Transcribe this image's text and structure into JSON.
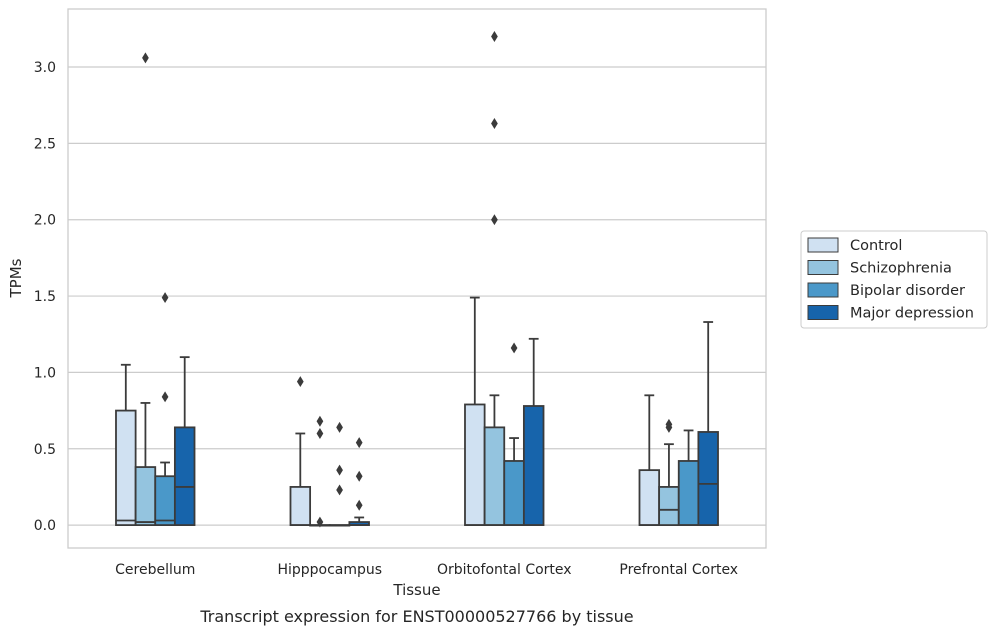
{
  "chart_data": {
    "type": "box",
    "caption": "Transcript expression for ENST00000527766 by tissue",
    "xlabel": "Tissue",
    "ylabel": "TPMs",
    "ylim": [
      -0.15,
      3.38
    ],
    "yticks": [
      0.0,
      0.5,
      1.0,
      1.5,
      2.0,
      2.5,
      3.0
    ],
    "ytick_labels": [
      "0.0",
      "0.5",
      "1.0",
      "1.5",
      "2.0",
      "2.5",
      "3.0"
    ],
    "grid": "horizontal",
    "legend_position": "right",
    "categories": [
      "Cerebellum",
      "Hipppocampus",
      "Orbitofontal Cortex",
      "Prefrontal Cortex"
    ],
    "series": [
      {
        "name": "Control",
        "color": "#d0e1f2",
        "boxes": [
          {
            "q1": 0.0,
            "median": 0.03,
            "q3": 0.75,
            "whisker_low": 0.0,
            "whisker_high": 1.05,
            "outliers": []
          },
          {
            "q1": 0.0,
            "median": 0.0,
            "q3": 0.25,
            "whisker_low": 0.0,
            "whisker_high": 0.6,
            "outliers": [
              0.94
            ]
          },
          {
            "q1": 0.0,
            "median": 0.0,
            "q3": 0.79,
            "whisker_low": 0.0,
            "whisker_high": 1.49,
            "outliers": []
          },
          {
            "q1": 0.0,
            "median": 0.0,
            "q3": 0.36,
            "whisker_low": 0.0,
            "whisker_high": 0.85,
            "outliers": []
          }
        ]
      },
      {
        "name": "Schizophrenia",
        "color": "#94c4df",
        "boxes": [
          {
            "q1": 0.0,
            "median": 0.02,
            "q3": 0.38,
            "whisker_low": 0.0,
            "whisker_high": 0.8,
            "outliers": [
              3.06
            ]
          },
          {
            "q1": 0.0,
            "median": 0.0,
            "q3": 0.0,
            "whisker_low": 0.0,
            "whisker_high": 0.0,
            "outliers": [
              0.02,
              0.6,
              0.68
            ]
          },
          {
            "q1": 0.0,
            "median": 0.0,
            "q3": 0.64,
            "whisker_low": 0.0,
            "whisker_high": 0.85,
            "outliers": [
              2.0,
              2.63,
              3.2
            ]
          },
          {
            "q1": 0.0,
            "median": 0.1,
            "q3": 0.25,
            "whisker_low": 0.0,
            "whisker_high": 0.53,
            "outliers": [
              0.64,
              0.66
            ]
          }
        ]
      },
      {
        "name": "Bipolar disorder",
        "color": "#4a98c9",
        "boxes": [
          {
            "q1": 0.0,
            "median": 0.03,
            "q3": 0.32,
            "whisker_low": 0.0,
            "whisker_high": 0.41,
            "outliers": [
              0.84,
              1.49
            ]
          },
          {
            "q1": 0.0,
            "median": 0.0,
            "q3": 0.0,
            "whisker_low": 0.0,
            "whisker_high": 0.0,
            "outliers": [
              0.23,
              0.36,
              0.64
            ]
          },
          {
            "q1": 0.0,
            "median": 0.0,
            "q3": 0.42,
            "whisker_low": 0.0,
            "whisker_high": 0.57,
            "outliers": [
              1.16
            ]
          },
          {
            "q1": 0.0,
            "median": 0.0,
            "q3": 0.42,
            "whisker_low": 0.0,
            "whisker_high": 0.62,
            "outliers": []
          }
        ]
      },
      {
        "name": "Major depression",
        "color": "#1764ab",
        "boxes": [
          {
            "q1": 0.0,
            "median": 0.25,
            "q3": 0.64,
            "whisker_low": 0.0,
            "whisker_high": 1.1,
            "outliers": []
          },
          {
            "q1": 0.0,
            "median": 0.0,
            "q3": 0.02,
            "whisker_low": 0.0,
            "whisker_high": 0.05,
            "outliers": [
              0.13,
              0.32,
              0.54
            ]
          },
          {
            "q1": 0.0,
            "median": 0.0,
            "q3": 0.78,
            "whisker_low": 0.0,
            "whisker_high": 1.22,
            "outliers": []
          },
          {
            "q1": 0.0,
            "median": 0.27,
            "q3": 0.61,
            "whisker_low": 0.0,
            "whisker_high": 1.33,
            "outliers": []
          }
        ]
      }
    ]
  }
}
